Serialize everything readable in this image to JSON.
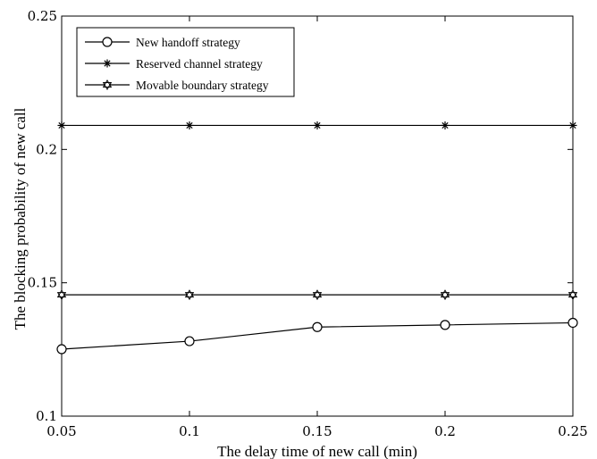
{
  "chart_data": {
    "type": "line",
    "title": "",
    "xlabel": "The delay time of new call (min)",
    "ylabel": "The blocking probability of new call",
    "x": [
      0.05,
      0.1,
      0.15,
      0.2,
      0.25
    ],
    "x_tick_labels": [
      "0.05",
      "0.1",
      "0.15",
      "0.2",
      "0.25"
    ],
    "y_tick_labels": [
      "0.1",
      "0.15",
      "0.2",
      "0.25"
    ],
    "xlim": [
      0.05,
      0.25
    ],
    "ylim": [
      0.1,
      0.25
    ],
    "grid": false,
    "legend_position": "top-left",
    "series": [
      {
        "name": "New handoff strategy",
        "marker": "circle",
        "values": [
          0.1251,
          0.1281,
          0.1334,
          0.1342,
          0.135
        ]
      },
      {
        "name": "Reserved channel strategy",
        "marker": "asterisk",
        "values": [
          0.209,
          0.209,
          0.209,
          0.209,
          0.209
        ]
      },
      {
        "name": "Movable boundary  strategy",
        "marker": "hexagram",
        "values": [
          0.1455,
          0.1455,
          0.1455,
          0.1455,
          0.1455
        ]
      }
    ],
    "colors": {
      "line": "#000000",
      "background": "#ffffff"
    }
  }
}
